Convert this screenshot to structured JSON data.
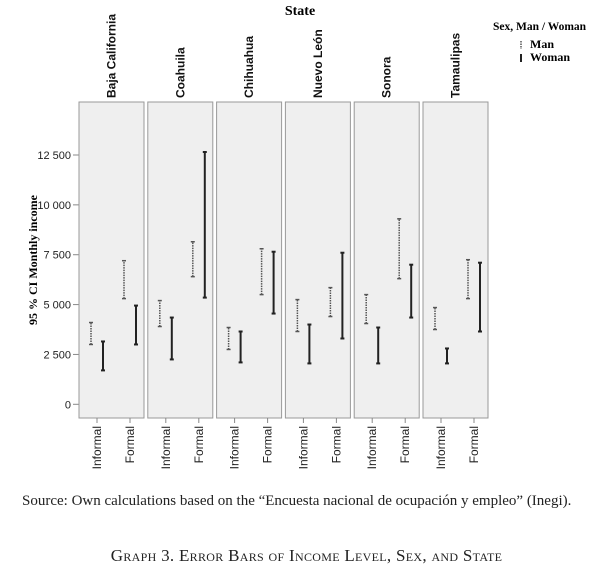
{
  "chart_data": {
    "type": "errorbar",
    "title": "State",
    "ylabel": "95 % CI Monthly income",
    "ylim": [
      -300,
      14500
    ],
    "yticks": [
      0,
      2500,
      5000,
      7500,
      10000,
      12500
    ],
    "ytick_labels": [
      "0",
      "2 500",
      "5 000",
      "7 500",
      "10 000",
      "12 500"
    ],
    "categories": [
      "Informal",
      "Formal"
    ],
    "legend": {
      "title": "Sex, Man / Woman",
      "entries": [
        "Man",
        "Woman"
      ],
      "placement": "top-right"
    },
    "panels": [
      {
        "state": "Baja California",
        "Informal": {
          "Man": [
            3000,
            4100
          ],
          "Woman": [
            1700,
            3150
          ]
        },
        "Formal": {
          "Man": [
            5300,
            7200
          ],
          "Woman": [
            3000,
            4950
          ]
        }
      },
      {
        "state": "Coahuila",
        "Informal": {
          "Man": [
            3900,
            5200
          ],
          "Woman": [
            2250,
            4350
          ]
        },
        "Formal": {
          "Man": [
            6400,
            8150
          ],
          "Woman": [
            5350,
            12650
          ]
        }
      },
      {
        "state": "Chihuahua",
        "Informal": {
          "Man": [
            2750,
            3850
          ],
          "Woman": [
            2100,
            3650
          ]
        },
        "Formal": {
          "Man": [
            5500,
            7800
          ],
          "Woman": [
            4550,
            7650
          ]
        }
      },
      {
        "state": "Nuevo León",
        "Informal": {
          "Man": [
            3650,
            5250
          ],
          "Woman": [
            2050,
            4000
          ]
        },
        "Formal": {
          "Man": [
            4400,
            5850
          ],
          "Woman": [
            3300,
            7600
          ]
        }
      },
      {
        "state": "Sonora",
        "Informal": {
          "Man": [
            4050,
            5500
          ],
          "Woman": [
            2050,
            3850
          ]
        },
        "Formal": {
          "Man": [
            6300,
            9300
          ],
          "Woman": [
            4350,
            7000
          ]
        }
      },
      {
        "state": "Tamaulipas",
        "Informal": {
          "Man": [
            3750,
            4850
          ],
          "Woman": [
            2050,
            2800
          ]
        },
        "Formal": {
          "Man": [
            5300,
            7250
          ],
          "Woman": [
            3650,
            7100
          ]
        }
      }
    ]
  },
  "source": "Source: Own calculations based on the “Encuesta nacional de ocupación y empleo” (Inegi).",
  "caption": "Graph 3. Error Bars of Income Level, Sex, and State"
}
